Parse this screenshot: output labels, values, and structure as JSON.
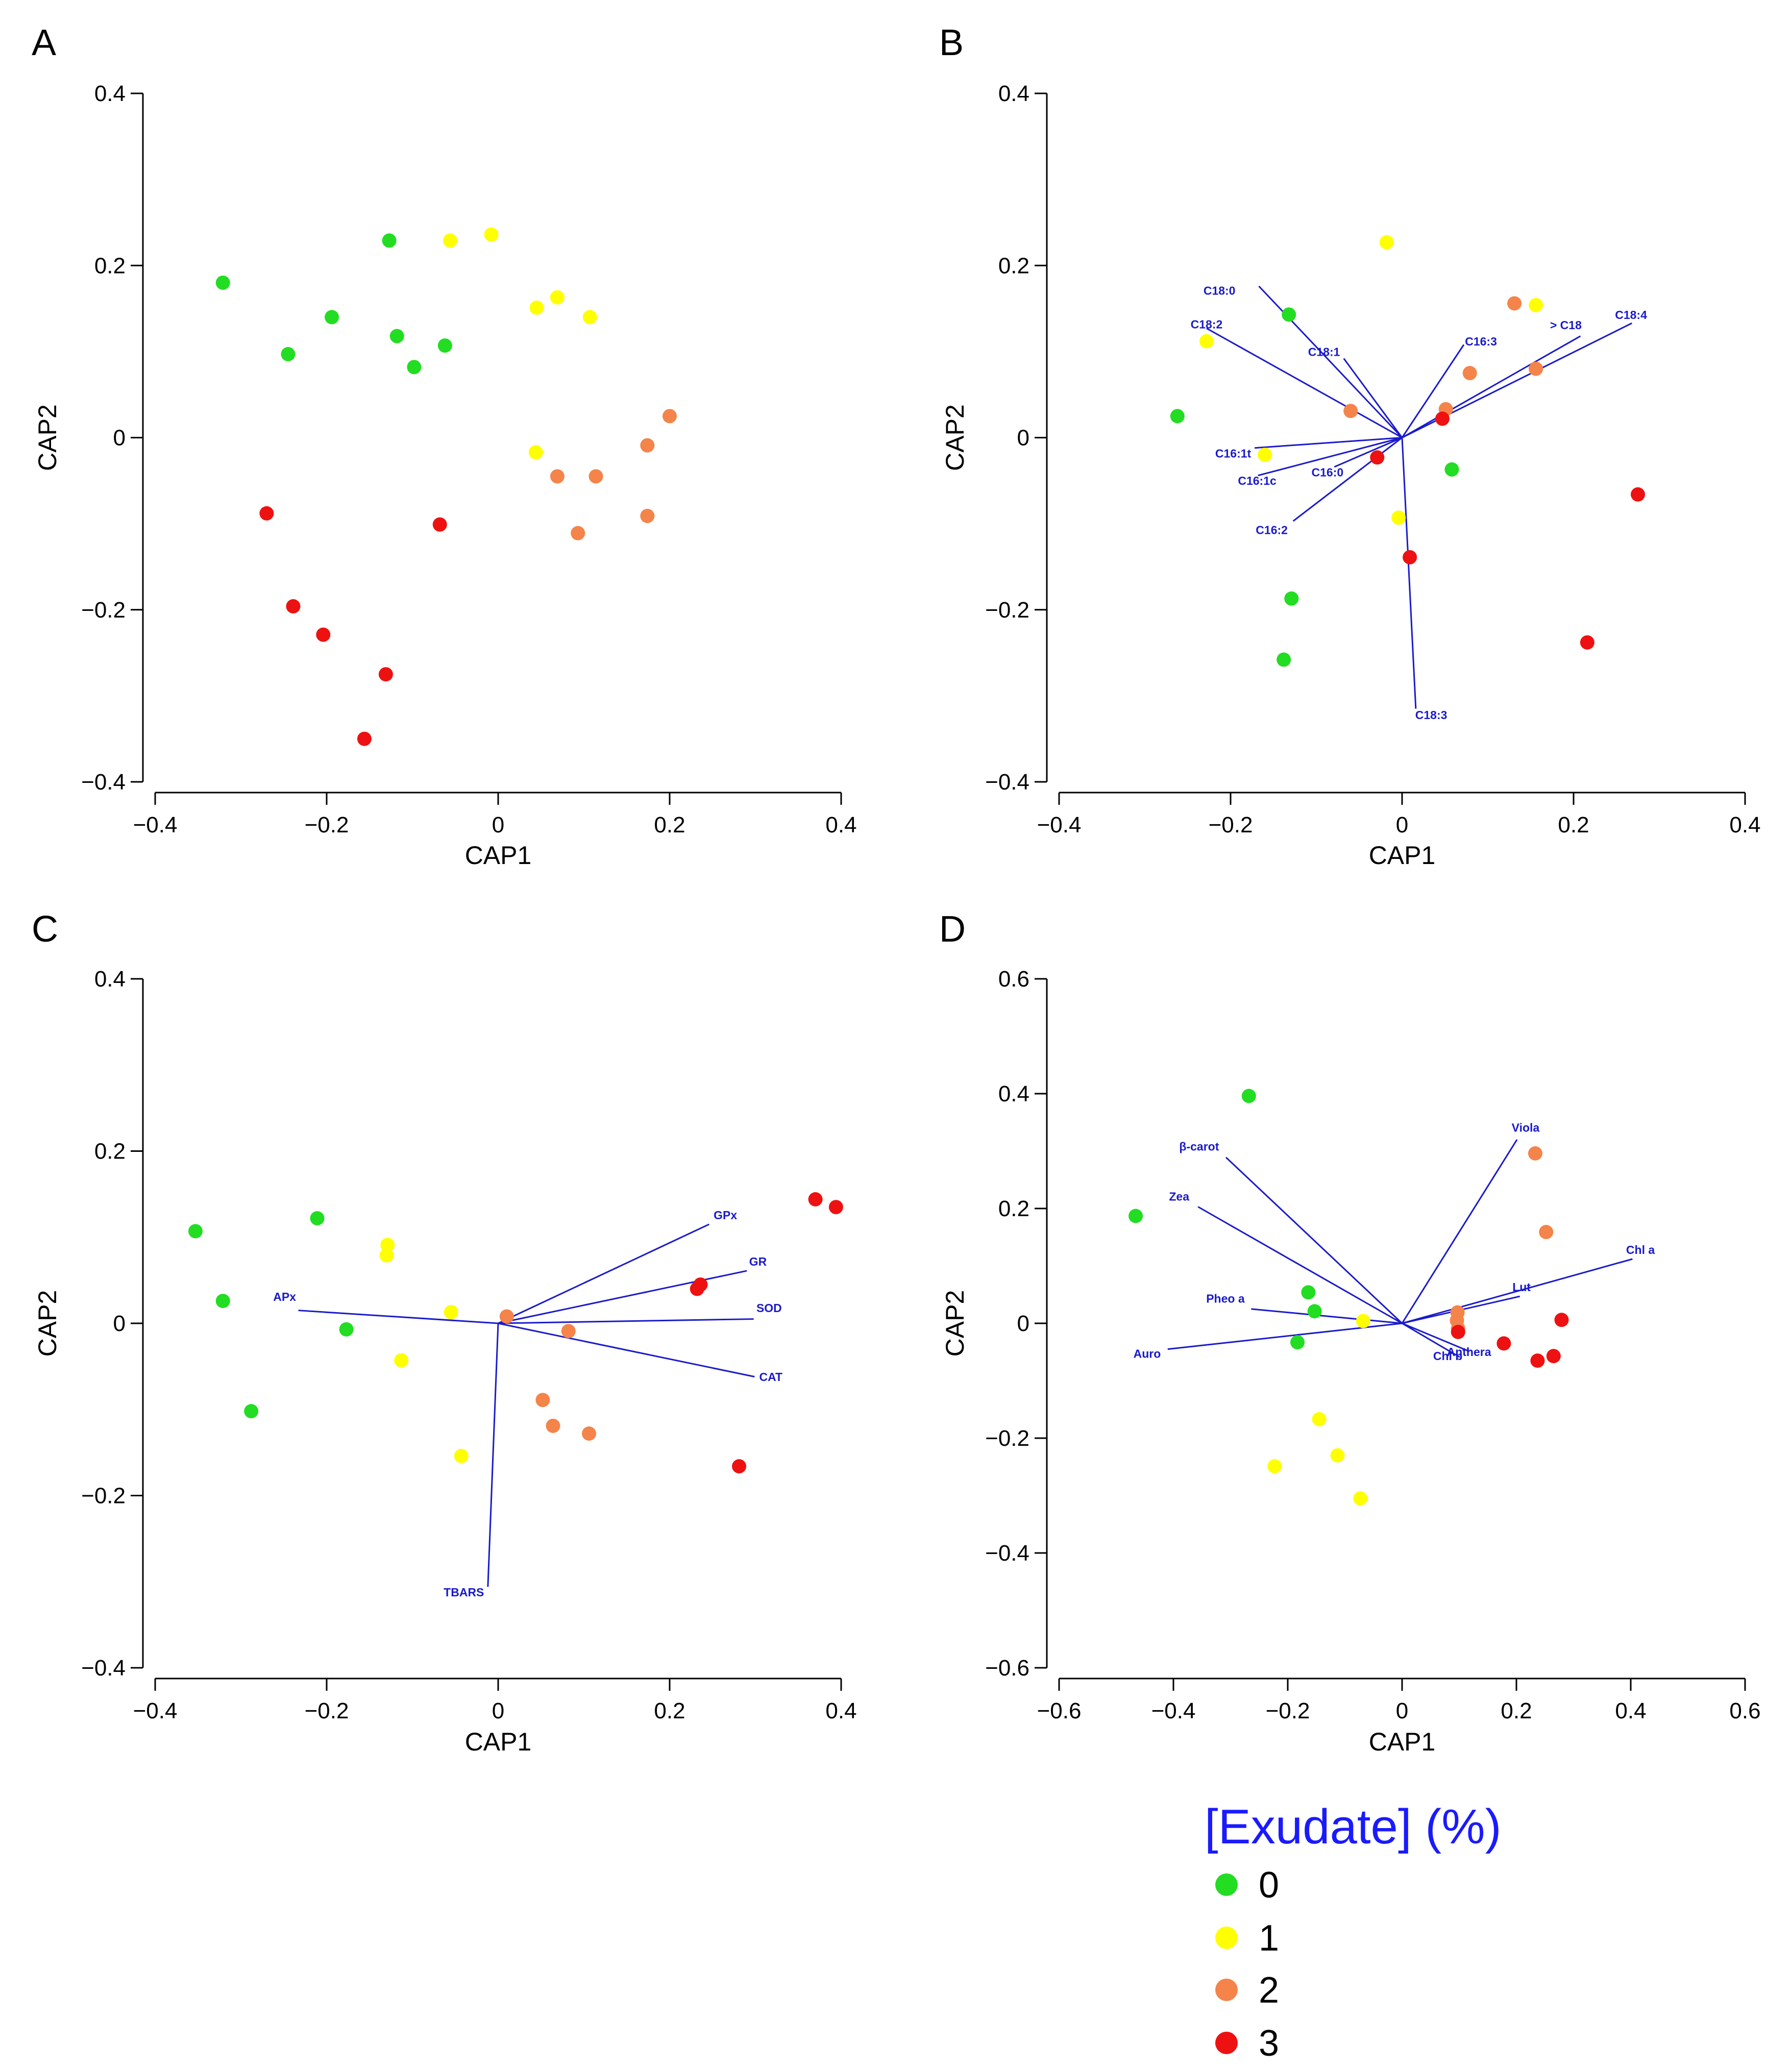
{
  "colors": {
    "g0": "#22dd22",
    "g1": "#ffff00",
    "g2": "#f4844a",
    "g3": "#ee1111",
    "vector": "#1a1acc",
    "axis": "#000000"
  },
  "legend": {
    "title": "[Exudate] (%)",
    "items": [
      {
        "label": "0",
        "color": "#22dd22"
      },
      {
        "label": "1",
        "color": "#ffff00"
      },
      {
        "label": "2",
        "color": "#f4844a"
      },
      {
        "label": "3",
        "color": "#ee1111"
      }
    ]
  },
  "chart_data": [
    {
      "type": "scatter",
      "panel": "A",
      "xlabel": "CAP1",
      "ylabel": "CAP2",
      "xlim": [
        -0.4,
        0.4
      ],
      "ylim": [
        -0.4,
        0.4
      ],
      "xticks": [
        "−0.4",
        "−0.2",
        "0",
        "0.2",
        "0.4"
      ],
      "yticks": [
        "−0.4",
        "−0.2",
        "0",
        "0.2",
        "0.4"
      ],
      "points": [
        {
          "x": -0.321,
          "y": 0.18,
          "g": 0
        },
        {
          "x": -0.127,
          "y": 0.229,
          "g": 0
        },
        {
          "x": -0.194,
          "y": 0.14,
          "g": 0
        },
        {
          "x": -0.245,
          "y": 0.097,
          "g": 0
        },
        {
          "x": -0.118,
          "y": 0.118,
          "g": 0
        },
        {
          "x": -0.062,
          "y": 0.107,
          "g": 0
        },
        {
          "x": -0.098,
          "y": 0.082,
          "g": 0
        },
        {
          "x": -0.056,
          "y": 0.229,
          "g": 1
        },
        {
          "x": -0.008,
          "y": 0.236,
          "g": 1
        },
        {
          "x": 0.045,
          "y": 0.151,
          "g": 1
        },
        {
          "x": 0.069,
          "y": 0.163,
          "g": 1
        },
        {
          "x": 0.107,
          "y": 0.14,
          "g": 1
        },
        {
          "x": 0.044,
          "y": -0.017,
          "g": 1
        },
        {
          "x": 0.2,
          "y": 0.025,
          "g": 2
        },
        {
          "x": 0.174,
          "y": -0.009,
          "g": 2
        },
        {
          "x": 0.069,
          "y": -0.045,
          "g": 2
        },
        {
          "x": 0.114,
          "y": -0.045,
          "g": 2
        },
        {
          "x": 0.093,
          "y": -0.111,
          "g": 2
        },
        {
          "x": 0.174,
          "y": -0.091,
          "g": 2
        },
        {
          "x": -0.27,
          "y": -0.088,
          "g": 3
        },
        {
          "x": -0.068,
          "y": -0.101,
          "g": 3
        },
        {
          "x": -0.239,
          "y": -0.196,
          "g": 3
        },
        {
          "x": -0.204,
          "y": -0.229,
          "g": 3
        },
        {
          "x": -0.131,
          "y": -0.275,
          "g": 3
        },
        {
          "x": -0.156,
          "y": -0.35,
          "g": 3
        }
      ],
      "vectors": []
    },
    {
      "type": "scatter",
      "panel": "B",
      "xlabel": "CAP1",
      "ylabel": "CAP2",
      "xlim": [
        -0.4,
        0.4
      ],
      "ylim": [
        -0.4,
        0.4
      ],
      "xticks": [
        "−0.4",
        "−0.2",
        "0",
        "0.2",
        "0.4"
      ],
      "yticks": [
        "−0.4",
        "−0.2",
        "0",
        "0.2",
        "0.4"
      ],
      "points": [
        {
          "x": -0.132,
          "y": 0.143,
          "g": 0
        },
        {
          "x": -0.262,
          "y": 0.025,
          "g": 0
        },
        {
          "x": 0.058,
          "y": -0.037,
          "g": 0
        },
        {
          "x": -0.129,
          "y": -0.187,
          "g": 0
        },
        {
          "x": -0.138,
          "y": -0.258,
          "g": 0
        },
        {
          "x": -0.018,
          "y": 0.227,
          "g": 1
        },
        {
          "x": -0.228,
          "y": 0.112,
          "g": 1
        },
        {
          "x": 0.156,
          "y": 0.154,
          "g": 1
        },
        {
          "x": -0.16,
          "y": -0.02,
          "g": 1
        },
        {
          "x": -0.004,
          "y": -0.093,
          "g": 1
        },
        {
          "x": 0.131,
          "y": 0.156,
          "g": 2
        },
        {
          "x": 0.079,
          "y": 0.075,
          "g": 2
        },
        {
          "x": 0.156,
          "y": 0.08,
          "g": 2
        },
        {
          "x": -0.06,
          "y": 0.031,
          "g": 2
        },
        {
          "x": 0.051,
          "y": 0.033,
          "g": 2
        },
        {
          "x": 0.047,
          "y": 0.022,
          "g": 3
        },
        {
          "x": -0.029,
          "y": -0.023,
          "g": 3
        },
        {
          "x": 0.009,
          "y": -0.139,
          "g": 3
        },
        {
          "x": 0.275,
          "y": -0.066,
          "g": 3
        },
        {
          "x": 0.216,
          "y": -0.238,
          "g": 3
        }
      ],
      "vectors": [
        {
          "label": "C18:0",
          "x": -0.167,
          "y": 0.176,
          "lx": -0.213,
          "ly": 0.166
        },
        {
          "label": "C18:2",
          "x": -0.228,
          "y": 0.127,
          "lx": -0.228,
          "ly": 0.127
        },
        {
          "label": "C18:1",
          "x": -0.068,
          "y": 0.092,
          "lx": -0.091,
          "ly": 0.095
        },
        {
          "label": "C16:3",
          "x": 0.072,
          "y": 0.108,
          "lx": 0.092,
          "ly": 0.107
        },
        {
          "label": "> C18",
          "x": 0.208,
          "y": 0.118,
          "lx": 0.191,
          "ly": 0.126
        },
        {
          "label": "C18:4",
          "x": 0.268,
          "y": 0.133,
          "lx": 0.267,
          "ly": 0.138
        },
        {
          "label": "C16:1t",
          "x": -0.172,
          "y": -0.012,
          "lx": -0.197,
          "ly": -0.023
        },
        {
          "label": "C16:1c",
          "x": -0.168,
          "y": -0.044,
          "lx": -0.169,
          "ly": -0.055
        },
        {
          "label": "C16:0",
          "x": -0.079,
          "y": -0.034,
          "lx": -0.087,
          "ly": -0.045
        },
        {
          "label": "C16:2",
          "x": -0.127,
          "y": -0.097,
          "lx": -0.152,
          "ly": -0.112
        },
        {
          "label": "C18:3",
          "x": 0.016,
          "y": -0.315,
          "lx": 0.034,
          "ly": -0.327
        }
      ]
    },
    {
      "type": "scatter",
      "panel": "C",
      "xlabel": "CAP1",
      "ylabel": "CAP2",
      "xlim": [
        -0.4,
        0.4
      ],
      "ylim": [
        -0.4,
        0.4
      ],
      "xticks": [
        "−0.4",
        "−0.2",
        "0",
        "0.2",
        "0.4"
      ],
      "yticks": [
        "−0.4",
        "−0.2",
        "0",
        "0.2",
        "0.4"
      ],
      "points": [
        {
          "x": -0.353,
          "y": 0.107,
          "g": 0
        },
        {
          "x": -0.211,
          "y": 0.122,
          "g": 0
        },
        {
          "x": -0.321,
          "y": 0.026,
          "g": 0
        },
        {
          "x": -0.177,
          "y": -0.007,
          "g": 0
        },
        {
          "x": -0.288,
          "y": -0.102,
          "g": 0
        },
        {
          "x": -0.129,
          "y": 0.091,
          "g": 1
        },
        {
          "x": -0.13,
          "y": 0.079,
          "g": 1
        },
        {
          "x": -0.055,
          "y": 0.013,
          "g": 1
        },
        {
          "x": -0.113,
          "y": -0.043,
          "g": 1
        },
        {
          "x": -0.043,
          "y": -0.154,
          "g": 1
        },
        {
          "x": 0.01,
          "y": 0.008,
          "g": 2
        },
        {
          "x": 0.082,
          "y": -0.009,
          "g": 2
        },
        {
          "x": 0.052,
          "y": -0.089,
          "g": 2
        },
        {
          "x": 0.064,
          "y": -0.119,
          "g": 2
        },
        {
          "x": 0.106,
          "y": -0.128,
          "g": 2
        },
        {
          "x": 0.236,
          "y": 0.045,
          "g": 3
        },
        {
          "x": 0.232,
          "y": 0.04,
          "g": 3
        },
        {
          "x": 0.37,
          "y": 0.144,
          "g": 3
        },
        {
          "x": 0.394,
          "y": 0.135,
          "g": 3
        },
        {
          "x": 0.281,
          "y": -0.166,
          "g": 3
        }
      ],
      "vectors": [
        {
          "label": "GPx",
          "x": 0.246,
          "y": 0.115,
          "lx": 0.265,
          "ly": 0.121
        },
        {
          "label": "GR",
          "x": 0.29,
          "y": 0.061,
          "lx": 0.303,
          "ly": 0.067
        },
        {
          "label": "SOD",
          "x": 0.298,
          "y": 0.005,
          "lx": 0.316,
          "ly": 0.013
        },
        {
          "label": "CAT",
          "x": 0.299,
          "y": -0.062,
          "lx": 0.318,
          "ly": -0.067
        },
        {
          "label": "APx",
          "x": -0.233,
          "y": 0.015,
          "lx": -0.249,
          "ly": 0.026
        },
        {
          "label": "TBARS",
          "x": -0.012,
          "y": -0.306,
          "lx": -0.04,
          "ly": -0.317
        }
      ]
    },
    {
      "type": "scatter",
      "panel": "D",
      "xlabel": "CAP1",
      "ylabel": "CAP2",
      "xlim": [
        -0.6,
        0.6
      ],
      "ylim": [
        -0.6,
        0.6
      ],
      "xticks": [
        "−0.6",
        "−0.4",
        "−0.2",
        "0",
        "0.2",
        "0.4",
        "0.6"
      ],
      "yticks": [
        "−0.6",
        "−0.4",
        "−0.2",
        "0",
        "0.2",
        "0.4",
        "0.6"
      ],
      "points": [
        {
          "x": -0.268,
          "y": 0.396,
          "g": 0
        },
        {
          "x": -0.466,
          "y": 0.187,
          "g": 0
        },
        {
          "x": -0.164,
          "y": 0.054,
          "g": 0
        },
        {
          "x": -0.153,
          "y": 0.021,
          "g": 0
        },
        {
          "x": -0.183,
          "y": -0.033,
          "g": 0
        },
        {
          "x": -0.068,
          "y": 0.004,
          "g": 1
        },
        {
          "x": -0.145,
          "y": -0.167,
          "g": 1
        },
        {
          "x": -0.113,
          "y": -0.23,
          "g": 1
        },
        {
          "x": -0.223,
          "y": -0.249,
          "g": 1
        },
        {
          "x": -0.073,
          "y": -0.305,
          "g": 1
        },
        {
          "x": 0.233,
          "y": 0.296,
          "g": 2
        },
        {
          "x": 0.252,
          "y": 0.159,
          "g": 2
        },
        {
          "x": 0.097,
          "y": 0.019,
          "g": 2
        },
        {
          "x": 0.096,
          "y": 0.005,
          "g": 2
        },
        {
          "x": 0.098,
          "y": -0.009,
          "g": 2
        },
        {
          "x": 0.279,
          "y": 0.006,
          "g": 3
        },
        {
          "x": 0.098,
          "y": -0.015,
          "g": 3
        },
        {
          "x": 0.178,
          "y": -0.035,
          "g": 3
        },
        {
          "x": 0.265,
          "y": -0.057,
          "g": 3
        },
        {
          "x": 0.237,
          "y": -0.065,
          "g": 3
        }
      ],
      "vectors": [
        {
          "label": "β-carot",
          "x": -0.308,
          "y": 0.289,
          "lx": -0.355,
          "ly": 0.301
        },
        {
          "label": "Zea",
          "x": -0.357,
          "y": 0.203,
          "lx": -0.39,
          "ly": 0.214
        },
        {
          "label": "Pheo a",
          "x": -0.264,
          "y": 0.025,
          "lx": -0.309,
          "ly": 0.036
        },
        {
          "label": "Auro",
          "x": -0.41,
          "y": -0.045,
          "lx": -0.446,
          "ly": -0.06
        },
        {
          "label": "Viola",
          "x": 0.201,
          "y": 0.32,
          "lx": 0.216,
          "ly": 0.334
        },
        {
          "label": "Chl a",
          "x": 0.403,
          "y": 0.112,
          "lx": 0.417,
          "ly": 0.121
        },
        {
          "label": "Lut",
          "x": 0.206,
          "y": 0.047,
          "lx": 0.209,
          "ly": 0.056
        },
        {
          "label": "Anthera",
          "x": 0.118,
          "y": -0.049,
          "lx": 0.117,
          "ly": -0.057
        },
        {
          "label": "Chl b",
          "x": 0.101,
          "y": -0.059,
          "lx": 0.08,
          "ly": -0.064
        }
      ]
    }
  ]
}
